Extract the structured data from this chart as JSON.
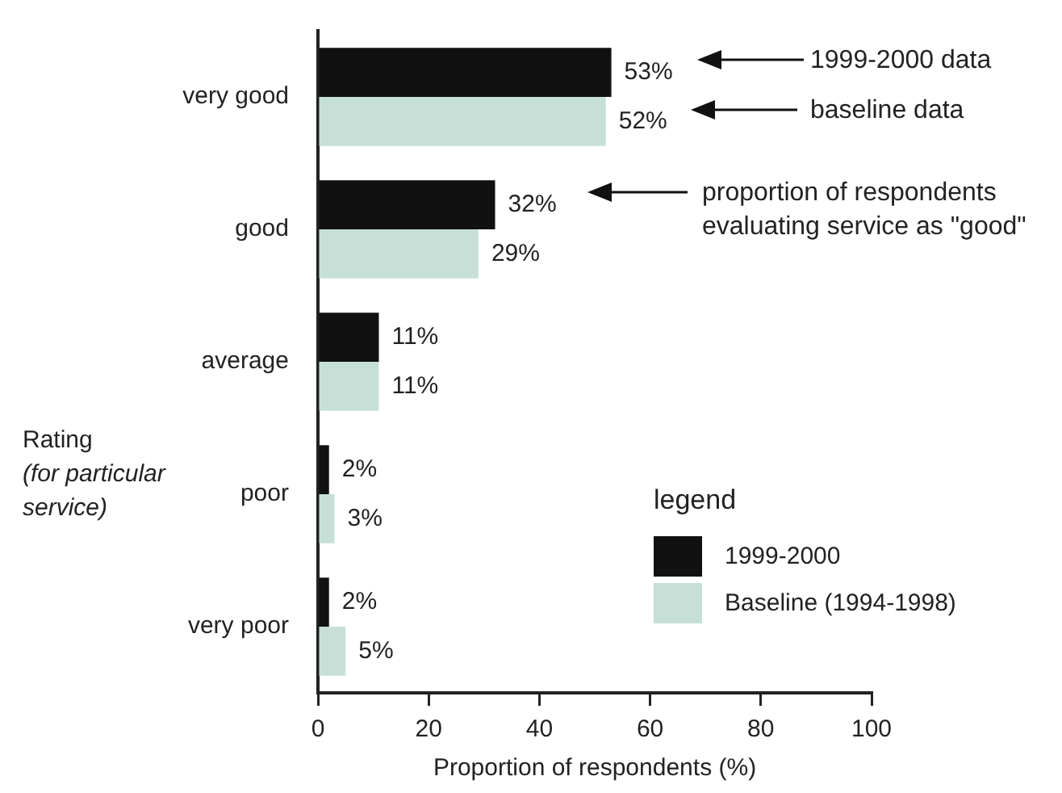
{
  "chart_data": {
    "type": "bar",
    "orientation": "horizontal",
    "xlabel": "Proportion of respondents (%)",
    "ylabel": "Rating (for particular service)",
    "legend_title": "legend",
    "legend": "bottom right",
    "categories": [
      "very good",
      "good",
      "average",
      "poor",
      "very poor"
    ],
    "series": [
      {
        "name": "1999-2000",
        "color": "#111111",
        "values": [
          53,
          32,
          11,
          2,
          2
        ],
        "value_labels": [
          "53%",
          "32%",
          "11%",
          "2%",
          "2%"
        ]
      },
      {
        "name": "Baseline (1994-1998)",
        "color": "#c6e0d8",
        "values": [
          52,
          29,
          11,
          3,
          5
        ],
        "value_labels": [
          "52%",
          "29%",
          "11%",
          "3%",
          "5%"
        ]
      }
    ],
    "xlim": [
      0,
      100
    ],
    "xticks": [
      0,
      20,
      40,
      60,
      80,
      100
    ],
    "grid": false,
    "annotations": [
      "1999-2000 data",
      "baseline data",
      "proportion of respondents evaluating service as \"good\""
    ]
  }
}
